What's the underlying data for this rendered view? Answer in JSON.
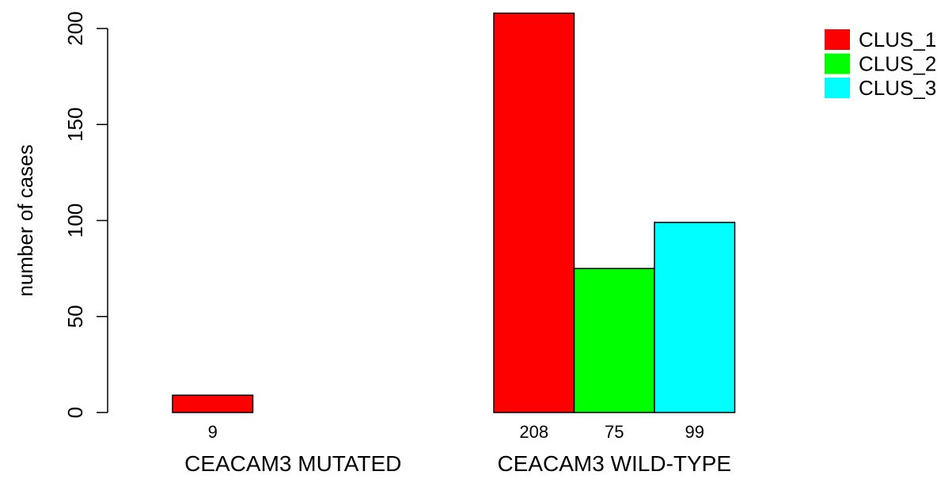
{
  "chart_data": {
    "type": "bar",
    "ylabel": "number of cases",
    "ylim": [
      0,
      200
    ],
    "yticks": [
      "0",
      "50",
      "100",
      "150",
      "200"
    ],
    "grid": false,
    "legend_position": "top-right",
    "groups": [
      {
        "label": "CEACAM3 MUTATED",
        "values": [
          9,
          0,
          0
        ],
        "value_labels": [
          "9",
          "",
          ""
        ]
      },
      {
        "label": "CEACAM3 WILD-TYPE",
        "values": [
          208,
          75,
          99
        ],
        "value_labels": [
          "208",
          "75",
          "99"
        ]
      }
    ],
    "series": [
      {
        "name": "CLUS_1",
        "color": "#ff0000"
      },
      {
        "name": "CLUS_2",
        "color": "#00ff00"
      },
      {
        "name": "CLUS_3",
        "color": "#00ffff"
      }
    ]
  }
}
